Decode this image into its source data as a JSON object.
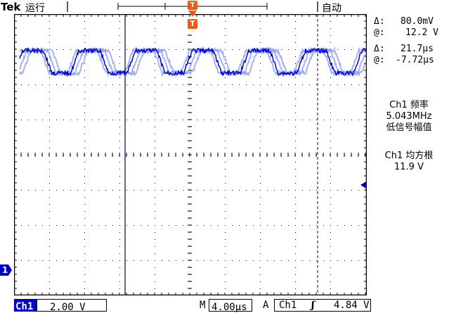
{
  "header": {
    "brand": "Tek",
    "run_state": "运行",
    "trigger_mode": "自动",
    "trigger_marker": "T",
    "trigger_letter": "T"
  },
  "cursors": {
    "delta_v_symbol": "Δ:",
    "delta_v": "80.0mV",
    "at_v_symbol": "@:",
    "at_v": "12.2 V",
    "delta_t_symbol": "Δ:",
    "delta_t": "21.7µs",
    "at_t_symbol": "@:",
    "at_t": "-7.72µs"
  },
  "measurements": [
    {
      "title": "Ch1 频率",
      "value": "5.043MHz",
      "note": "低信号幅值"
    },
    {
      "title": "Ch1 均方根",
      "value": "11.9 V",
      "note": ""
    }
  ],
  "channel_marker": "1",
  "status": {
    "channel": "Ch1",
    "volts_per_div": "2.00 V",
    "timebase_prefix": "M",
    "timebase": "4.00µs",
    "trigger_prefix": "A",
    "trigger_source": "Ch1",
    "trigger_slope": "ʃ",
    "trigger_level": "4.84 V"
  },
  "colors": {
    "waveform": "#0000e0",
    "waveform_ghost": "#8f9ff0",
    "trigger_marker": "#f05a10",
    "grid": "#000000",
    "cursor": "#000060"
  }
}
